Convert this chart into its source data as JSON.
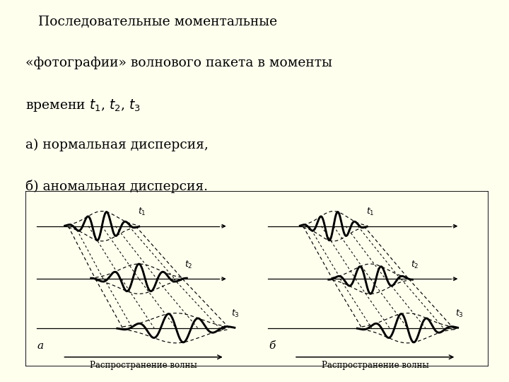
{
  "fig_bg": "#ffffee",
  "box_bg": "#ffffff",
  "label_a": "a",
  "label_b": "б",
  "xlabel": "Распространение волны",
  "t_labels": [
    "$t_1$",
    "$t_2$",
    "$t_3$"
  ]
}
